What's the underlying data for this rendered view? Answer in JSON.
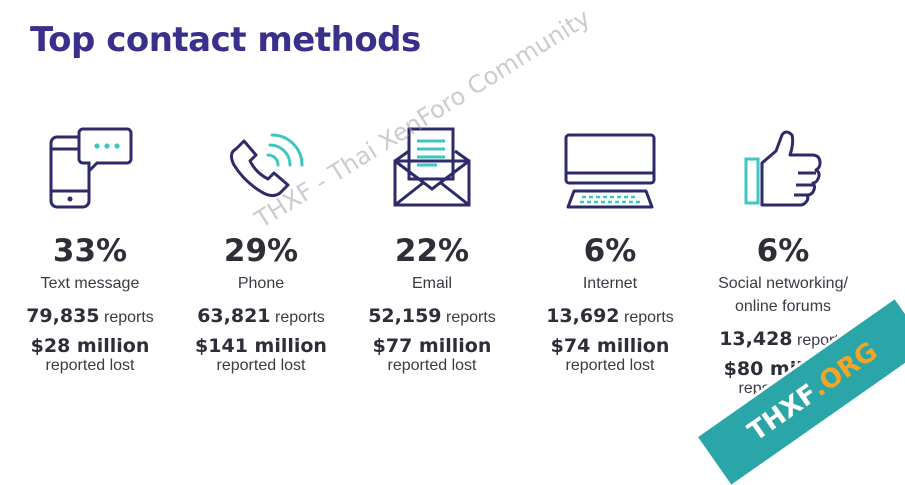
{
  "title": "Top contact methods",
  "watermark_text": "THXF - Thai XenForo Community",
  "badge": {
    "main": "THXF",
    "suffix": ".ORG"
  },
  "chart_data": {
    "type": "table",
    "title": "Top contact methods",
    "categories": [
      "Text message",
      "Phone",
      "Email",
      "Internet",
      "Social networking/ online forums"
    ],
    "series": [
      {
        "name": "",
        "values": [
          33,
          29,
          22,
          6,
          6
        ]
      }
    ],
    "items": [
      {
        "pct": "33%",
        "label_lines": [
          "Text message"
        ],
        "reports": "79,835",
        "reports_unit": "reports",
        "money": "$28 million",
        "lost": "reported lost",
        "icon": "smartphone-chat-icon"
      },
      {
        "pct": "29%",
        "label_lines": [
          "Phone"
        ],
        "reports": "63,821",
        "reports_unit": "reports",
        "money": "$141 million",
        "lost": "reported lost",
        "icon": "phone-call-icon"
      },
      {
        "pct": "22%",
        "label_lines": [
          "Email"
        ],
        "reports": "52,159",
        "reports_unit": "reports",
        "money": "$77 million",
        "lost": "reported lost",
        "icon": "email-envelope-icon"
      },
      {
        "pct": "6%",
        "label_lines": [
          "Internet"
        ],
        "reports": "13,692",
        "reports_unit": "reports",
        "money": "$74 million",
        "lost": "reported lost",
        "icon": "computer-icon"
      },
      {
        "pct": "6%",
        "label_lines": [
          "Social networking/",
          "online forums"
        ],
        "reports": "13,428",
        "reports_unit": "reports",
        "money": "$80 million",
        "lost": "reported lost",
        "icon": "thumbs-up-icon"
      }
    ]
  },
  "colors": {
    "title": "#3b2f8c",
    "icon_line": "#2e2a6b",
    "accent": "#3ec6c0"
  }
}
